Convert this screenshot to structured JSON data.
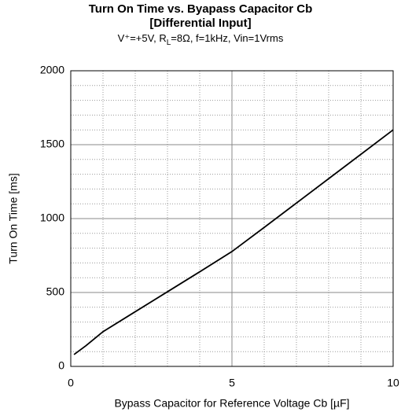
{
  "chart_data": {
    "type": "line",
    "title": [
      "Turn On Time vs. Byapass Capacitor Cb",
      "[Differential Input]"
    ],
    "subtitle": [
      "V⁺=+5V, R",
      "L",
      "=8Ω, f=1kHz, Vin=1Vrms"
    ],
    "x_label": "Bypass Capacitor for Reference Voltage Cb [µF]",
    "y_label": "Turn On Time [ms]",
    "x": [
      0.1,
      0.47,
      1,
      2,
      3,
      4,
      5,
      6,
      7,
      8,
      9,
      10
    ],
    "series": [
      {
        "name": "Turn On Time",
        "color": "#000000",
        "values": [
          80,
          140,
          235,
          370,
          505,
          640,
          777,
          940,
          1105,
          1270,
          1435,
          1600
        ]
      }
    ],
    "xlim": [
      0,
      10
    ],
    "xticks": [
      0,
      5,
      10
    ],
    "ylim": [
      0,
      2000
    ],
    "yticks": [
      0,
      500,
      1000,
      1500,
      2000
    ],
    "grid": true
  }
}
